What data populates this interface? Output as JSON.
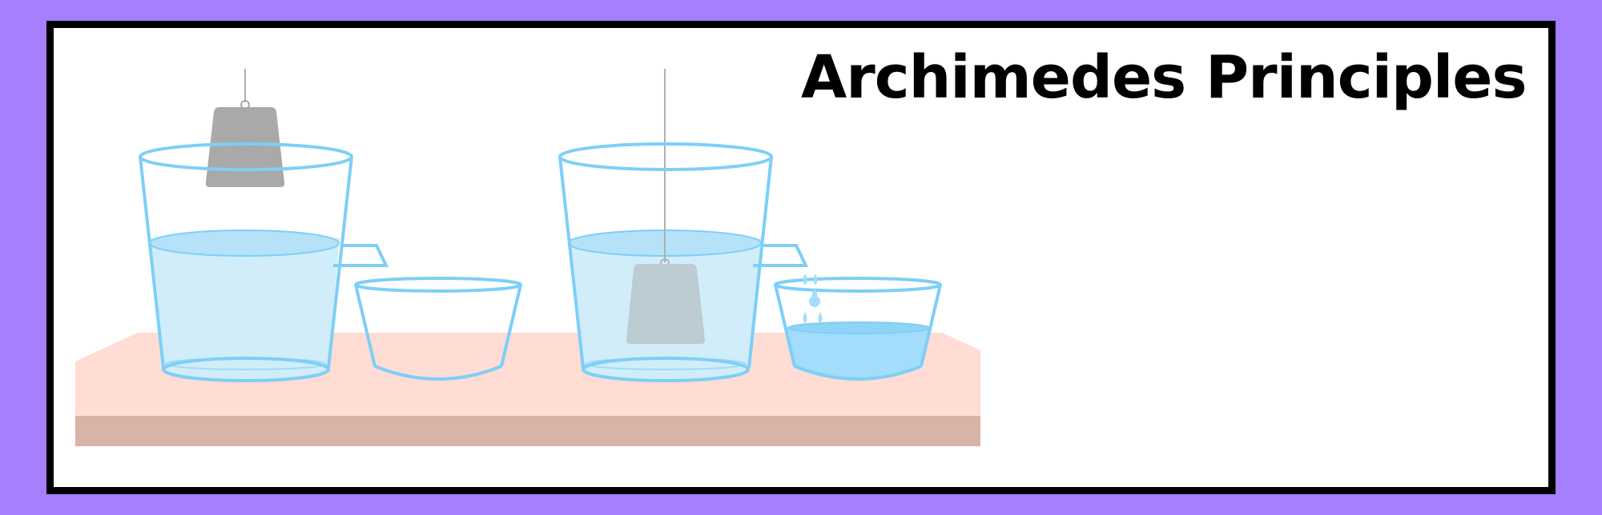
{
  "title": "Archimedes Principles",
  "colors": {
    "background": "#a57ffe",
    "frame_border": "#000000",
    "frame_fill": "#ffffff",
    "table_top": "#ffdcd4",
    "table_front": "#d9b2a8",
    "glass_outline": "#7dcff7",
    "water": "#d1edfa",
    "water_surface": "#b5e2f8",
    "displaced_water": "#a4dcfc",
    "weight_in_air": "#a9a9a9",
    "weight_submerged": "#bcccd2",
    "string": "#b0b0b0"
  },
  "icons": {
    "beaker_1": "beaker-with-spout-icon",
    "catch_bowl_1": "empty-bowl-icon",
    "weight_1": "hanging-weight-icon",
    "beaker_2": "beaker-with-spout-icon",
    "catch_bowl_2": "bowl-with-water-icon",
    "weight_2": "submerged-weight-icon",
    "drops": "water-drop-icon"
  }
}
